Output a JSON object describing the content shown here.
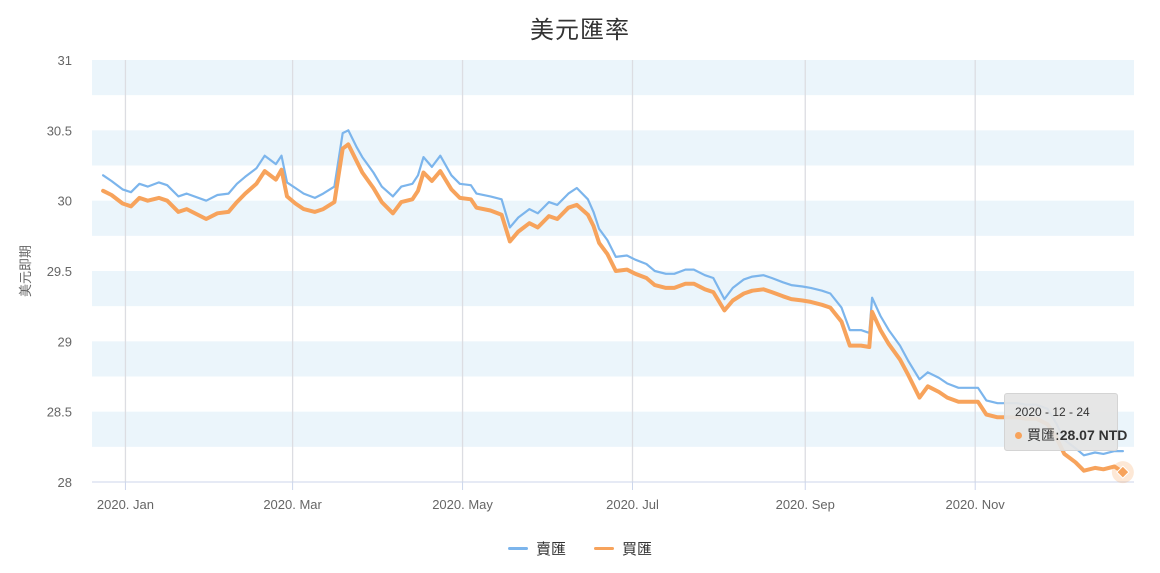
{
  "chart_data": {
    "type": "line",
    "title": "美元匯率",
    "ylabel": "美元即期",
    "xlabel": "",
    "ylim": [
      28,
      31
    ],
    "yticks": [
      "28",
      "28.5",
      "29",
      "29.5",
      "30",
      "30.5",
      "31"
    ],
    "xticks": [
      {
        "label": "2020. Jan",
        "date": "2020-01-01"
      },
      {
        "label": "2020. Mar",
        "date": "2020-03-01"
      },
      {
        "label": "2020. May",
        "date": "2020-05-01"
      },
      {
        "label": "2020. Jul",
        "date": "2020-07-01"
      },
      {
        "label": "2020. Sep",
        "date": "2020-09-01"
      },
      {
        "label": "2020. Nov",
        "date": "2020-11-01"
      }
    ],
    "series": [
      {
        "name": "賣匯",
        "color": "#7cb5ec",
        "points": [
          [
            "2019-12-24",
            30.18
          ],
          [
            "2019-12-27",
            30.14
          ],
          [
            "2019-12-31",
            30.08
          ],
          [
            "2020-01-03",
            30.06
          ],
          [
            "2020-01-06",
            30.12
          ],
          [
            "2020-01-09",
            30.1
          ],
          [
            "2020-01-13",
            30.13
          ],
          [
            "2020-01-16",
            30.11
          ],
          [
            "2020-01-20",
            30.03
          ],
          [
            "2020-01-23",
            30.05
          ],
          [
            "2020-01-30",
            30.0
          ],
          [
            "2020-02-03",
            30.04
          ],
          [
            "2020-02-07",
            30.05
          ],
          [
            "2020-02-10",
            30.12
          ],
          [
            "2020-02-13",
            30.17
          ],
          [
            "2020-02-17",
            30.23
          ],
          [
            "2020-02-20",
            30.32
          ],
          [
            "2020-02-24",
            30.26
          ],
          [
            "2020-02-26",
            30.32
          ],
          [
            "2020-02-28",
            30.13
          ],
          [
            "2020-03-02",
            30.09
          ],
          [
            "2020-03-05",
            30.05
          ],
          [
            "2020-03-09",
            30.02
          ],
          [
            "2020-03-12",
            30.05
          ],
          [
            "2020-03-16",
            30.1
          ],
          [
            "2020-03-19",
            30.48
          ],
          [
            "2020-03-21",
            30.5
          ],
          [
            "2020-03-24",
            30.38
          ],
          [
            "2020-03-26",
            30.31
          ],
          [
            "2020-03-30",
            30.2
          ],
          [
            "2020-04-02",
            30.1
          ],
          [
            "2020-04-06",
            30.03
          ],
          [
            "2020-04-09",
            30.1
          ],
          [
            "2020-04-13",
            30.12
          ],
          [
            "2020-04-15",
            30.18
          ],
          [
            "2020-04-17",
            30.31
          ],
          [
            "2020-04-20",
            30.24
          ],
          [
            "2020-04-23",
            30.32
          ],
          [
            "2020-04-27",
            30.18
          ],
          [
            "2020-04-30",
            30.12
          ],
          [
            "2020-05-04",
            30.11
          ],
          [
            "2020-05-06",
            30.05
          ],
          [
            "2020-05-11",
            30.03
          ],
          [
            "2020-05-15",
            30.01
          ],
          [
            "2020-05-18",
            29.81
          ],
          [
            "2020-05-21",
            29.88
          ],
          [
            "2020-05-25",
            29.94
          ],
          [
            "2020-05-28",
            29.91
          ],
          [
            "2020-06-01",
            29.99
          ],
          [
            "2020-06-04",
            29.97
          ],
          [
            "2020-06-08",
            30.05
          ],
          [
            "2020-06-11",
            30.09
          ],
          [
            "2020-06-15",
            30.01
          ],
          [
            "2020-06-17",
            29.92
          ],
          [
            "2020-06-19",
            29.8
          ],
          [
            "2020-06-22",
            29.72
          ],
          [
            "2020-06-25",
            29.6
          ],
          [
            "2020-06-29",
            29.61
          ],
          [
            "2020-07-02",
            29.58
          ],
          [
            "2020-07-06",
            29.55
          ],
          [
            "2020-07-09",
            29.5
          ],
          [
            "2020-07-13",
            29.48
          ],
          [
            "2020-07-16",
            29.48
          ],
          [
            "2020-07-20",
            29.51
          ],
          [
            "2020-07-23",
            29.51
          ],
          [
            "2020-07-27",
            29.47
          ],
          [
            "2020-07-30",
            29.45
          ],
          [
            "2020-08-03",
            29.3
          ],
          [
            "2020-08-06",
            29.38
          ],
          [
            "2020-08-10",
            29.44
          ],
          [
            "2020-08-13",
            29.46
          ],
          [
            "2020-08-17",
            29.47
          ],
          [
            "2020-08-20",
            29.45
          ],
          [
            "2020-08-24",
            29.42
          ],
          [
            "2020-08-27",
            29.4
          ],
          [
            "2020-08-31",
            29.39
          ],
          [
            "2020-09-03",
            29.38
          ],
          [
            "2020-09-07",
            29.36
          ],
          [
            "2020-09-10",
            29.34
          ],
          [
            "2020-09-14",
            29.24
          ],
          [
            "2020-09-17",
            29.08
          ],
          [
            "2020-09-21",
            29.08
          ],
          [
            "2020-09-24",
            29.06
          ],
          [
            "2020-09-25",
            29.31
          ],
          [
            "2020-09-28",
            29.18
          ],
          [
            "2020-10-01",
            29.08
          ],
          [
            "2020-10-05",
            28.97
          ],
          [
            "2020-10-08",
            28.86
          ],
          [
            "2020-10-12",
            28.73
          ],
          [
            "2020-10-15",
            28.78
          ],
          [
            "2020-10-19",
            28.74
          ],
          [
            "2020-10-22",
            28.7
          ],
          [
            "2020-10-26",
            28.67
          ],
          [
            "2020-10-29",
            28.67
          ],
          [
            "2020-11-02",
            28.67
          ],
          [
            "2020-11-05",
            28.58
          ],
          [
            "2020-11-09",
            28.56
          ],
          [
            "2020-11-12",
            28.56
          ],
          [
            "2020-11-16",
            28.56
          ],
          [
            "2020-11-19",
            28.55
          ],
          [
            "2020-11-23",
            28.55
          ],
          [
            "2020-11-27",
            28.52
          ],
          [
            "2020-11-30",
            28.42
          ],
          [
            "2020-12-03",
            28.3
          ],
          [
            "2020-12-07",
            28.24
          ],
          [
            "2020-12-10",
            28.19
          ],
          [
            "2020-12-14",
            28.21
          ],
          [
            "2020-12-17",
            28.2
          ],
          [
            "2020-12-21",
            28.22
          ],
          [
            "2020-12-24",
            28.22
          ]
        ]
      },
      {
        "name": "買匯",
        "color": "#f7a35c",
        "points": [
          [
            "2019-12-24",
            30.07
          ],
          [
            "2019-12-27",
            30.04
          ],
          [
            "2019-12-31",
            29.98
          ],
          [
            "2020-01-03",
            29.96
          ],
          [
            "2020-01-06",
            30.02
          ],
          [
            "2020-01-09",
            30.0
          ],
          [
            "2020-01-13",
            30.02
          ],
          [
            "2020-01-16",
            30.0
          ],
          [
            "2020-01-20",
            29.92
          ],
          [
            "2020-01-23",
            29.94
          ],
          [
            "2020-01-30",
            29.87
          ],
          [
            "2020-02-03",
            29.91
          ],
          [
            "2020-02-07",
            29.92
          ],
          [
            "2020-02-10",
            29.99
          ],
          [
            "2020-02-13",
            30.05
          ],
          [
            "2020-02-17",
            30.12
          ],
          [
            "2020-02-20",
            30.21
          ],
          [
            "2020-02-24",
            30.15
          ],
          [
            "2020-02-26",
            30.22
          ],
          [
            "2020-02-28",
            30.03
          ],
          [
            "2020-03-02",
            29.98
          ],
          [
            "2020-03-05",
            29.94
          ],
          [
            "2020-03-09",
            29.92
          ],
          [
            "2020-03-12",
            29.94
          ],
          [
            "2020-03-16",
            29.99
          ],
          [
            "2020-03-19",
            30.37
          ],
          [
            "2020-03-21",
            30.4
          ],
          [
            "2020-03-24",
            30.28
          ],
          [
            "2020-03-26",
            30.2
          ],
          [
            "2020-03-30",
            30.09
          ],
          [
            "2020-04-02",
            29.99
          ],
          [
            "2020-04-06",
            29.91
          ],
          [
            "2020-04-09",
            29.99
          ],
          [
            "2020-04-13",
            30.01
          ],
          [
            "2020-04-15",
            30.07
          ],
          [
            "2020-04-17",
            30.2
          ],
          [
            "2020-04-20",
            30.14
          ],
          [
            "2020-04-23",
            30.21
          ],
          [
            "2020-04-27",
            30.08
          ],
          [
            "2020-04-30",
            30.02
          ],
          [
            "2020-05-04",
            30.01
          ],
          [
            "2020-05-06",
            29.95
          ],
          [
            "2020-05-11",
            29.93
          ],
          [
            "2020-05-15",
            29.9
          ],
          [
            "2020-05-18",
            29.71
          ],
          [
            "2020-05-21",
            29.78
          ],
          [
            "2020-05-25",
            29.84
          ],
          [
            "2020-05-28",
            29.81
          ],
          [
            "2020-06-01",
            29.89
          ],
          [
            "2020-06-04",
            29.87
          ],
          [
            "2020-06-08",
            29.95
          ],
          [
            "2020-06-11",
            29.97
          ],
          [
            "2020-06-15",
            29.9
          ],
          [
            "2020-06-17",
            29.82
          ],
          [
            "2020-06-19",
            29.7
          ],
          [
            "2020-06-22",
            29.62
          ],
          [
            "2020-06-25",
            29.5
          ],
          [
            "2020-06-29",
            29.51
          ],
          [
            "2020-07-02",
            29.48
          ],
          [
            "2020-07-06",
            29.45
          ],
          [
            "2020-07-09",
            29.4
          ],
          [
            "2020-07-13",
            29.38
          ],
          [
            "2020-07-16",
            29.38
          ],
          [
            "2020-07-20",
            29.41
          ],
          [
            "2020-07-23",
            29.41
          ],
          [
            "2020-07-27",
            29.37
          ],
          [
            "2020-07-30",
            29.35
          ],
          [
            "2020-08-03",
            29.22
          ],
          [
            "2020-08-06",
            29.29
          ],
          [
            "2020-08-10",
            29.34
          ],
          [
            "2020-08-13",
            29.36
          ],
          [
            "2020-08-17",
            29.37
          ],
          [
            "2020-08-20",
            29.35
          ],
          [
            "2020-08-24",
            29.32
          ],
          [
            "2020-08-27",
            29.3
          ],
          [
            "2020-08-31",
            29.29
          ],
          [
            "2020-09-03",
            29.28
          ],
          [
            "2020-09-07",
            29.26
          ],
          [
            "2020-09-10",
            29.24
          ],
          [
            "2020-09-14",
            29.14
          ],
          [
            "2020-09-17",
            28.97
          ],
          [
            "2020-09-21",
            28.97
          ],
          [
            "2020-09-24",
            28.96
          ],
          [
            "2020-09-25",
            29.21
          ],
          [
            "2020-09-28",
            29.08
          ],
          [
            "2020-10-01",
            28.98
          ],
          [
            "2020-10-05",
            28.87
          ],
          [
            "2020-10-08",
            28.76
          ],
          [
            "2020-10-12",
            28.6
          ],
          [
            "2020-10-15",
            28.68
          ],
          [
            "2020-10-19",
            28.64
          ],
          [
            "2020-10-22",
            28.6
          ],
          [
            "2020-10-26",
            28.57
          ],
          [
            "2020-10-29",
            28.57
          ],
          [
            "2020-11-02",
            28.57
          ],
          [
            "2020-11-05",
            28.48
          ],
          [
            "2020-11-09",
            28.46
          ],
          [
            "2020-11-12",
            28.46
          ],
          [
            "2020-11-16",
            28.46
          ],
          [
            "2020-11-19",
            28.45
          ],
          [
            "2020-11-23",
            28.45
          ],
          [
            "2020-11-27",
            28.41
          ],
          [
            "2020-11-30",
            28.32
          ],
          [
            "2020-12-03",
            28.2
          ],
          [
            "2020-12-07",
            28.14
          ],
          [
            "2020-12-10",
            28.08
          ],
          [
            "2020-12-14",
            28.1
          ],
          [
            "2020-12-17",
            28.09
          ],
          [
            "2020-12-21",
            28.11
          ],
          [
            "2020-12-24",
            28.07
          ]
        ]
      }
    ],
    "grid": "alternating horizontal bands",
    "band_color": "#ebf5fb",
    "legend_position": "bottom-center",
    "tooltip": {
      "date": "2020 - 12 - 24",
      "series": "買匯",
      "label": "買匯: ",
      "value": "28.07 NTD"
    }
  }
}
